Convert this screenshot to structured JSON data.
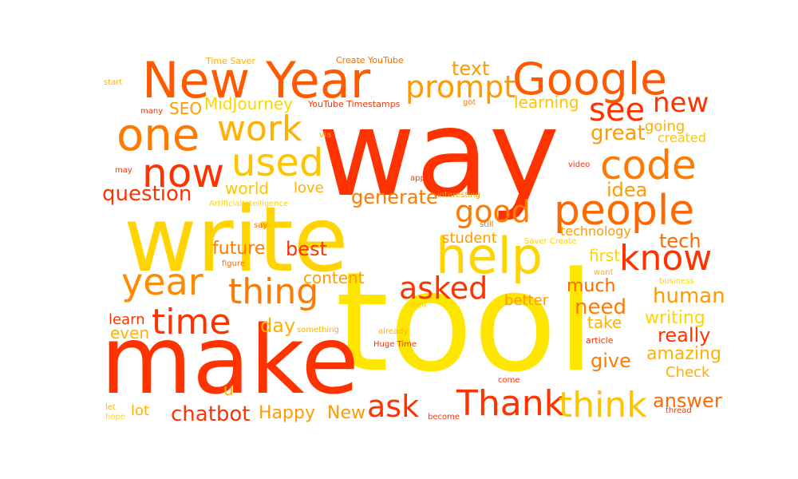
{
  "word_cloud": {
    "palette": {
      "red": "#ff2a00",
      "orange": "#ff7a00",
      "amber": "#ffb000",
      "yellow": "#ffe600"
    },
    "words": [
      {
        "text": "way",
        "color": "#ff3300"
      },
      {
        "text": "tool",
        "color": "#ffe600"
      },
      {
        "text": "make",
        "color": "#ff3300"
      },
      {
        "text": "write",
        "color": "#ffd400"
      },
      {
        "text": "New Year",
        "color": "#ff5a00"
      },
      {
        "text": "Google",
        "color": "#ff5a00"
      },
      {
        "text": "one",
        "color": "#ff7a00"
      },
      {
        "text": "work",
        "color": "#ffb000"
      },
      {
        "text": "now",
        "color": "#ff3300"
      },
      {
        "text": "used",
        "color": "#ffc400"
      },
      {
        "text": "prompt",
        "color": "#ff9a00"
      },
      {
        "text": "see",
        "color": "#ff3300"
      },
      {
        "text": "new",
        "color": "#ff3300"
      },
      {
        "text": "code",
        "color": "#ff7a00"
      },
      {
        "text": "people",
        "color": "#ff6a00"
      },
      {
        "text": "help",
        "color": "#ffd400"
      },
      {
        "text": "know",
        "color": "#ff3300"
      },
      {
        "text": "year",
        "color": "#ff8a00"
      },
      {
        "text": "thing",
        "color": "#ff7a00"
      },
      {
        "text": "time",
        "color": "#ff3300"
      },
      {
        "text": "asked",
        "color": "#ff3300"
      },
      {
        "text": "ask",
        "color": "#ff3300"
      },
      {
        "text": "Thank",
        "color": "#ff3300"
      },
      {
        "text": "think",
        "color": "#ffc400"
      },
      {
        "text": "good",
        "color": "#ff7a00"
      },
      {
        "text": "great",
        "color": "#ff9a00"
      },
      {
        "text": "question",
        "color": "#ff3300"
      },
      {
        "text": "generate",
        "color": "#ff7a00"
      },
      {
        "text": "idea",
        "color": "#ff9a00"
      },
      {
        "text": "world",
        "color": "#ffc400"
      },
      {
        "text": "love",
        "color": "#ffb000"
      },
      {
        "text": "text",
        "color": "#ff9a00"
      },
      {
        "text": "learning",
        "color": "#ffc400"
      },
      {
        "text": "going",
        "color": "#ffb000"
      },
      {
        "text": "created",
        "color": "#ffc400"
      },
      {
        "text": "future",
        "color": "#ff7a00"
      },
      {
        "text": "best",
        "color": "#ff3300"
      },
      {
        "text": "student",
        "color": "#ff9a00"
      },
      {
        "text": "technology",
        "color": "#ff9a00"
      },
      {
        "text": "tech",
        "color": "#ff6a00"
      },
      {
        "text": "first",
        "color": "#ffd400"
      },
      {
        "text": "content",
        "color": "#ff9a00"
      },
      {
        "text": "day",
        "color": "#ffb000"
      },
      {
        "text": "much",
        "color": "#ff6a00"
      },
      {
        "text": "human",
        "color": "#ff9a00"
      },
      {
        "text": "need",
        "color": "#ff7a00"
      },
      {
        "text": "better",
        "color": "#ff9a00"
      },
      {
        "text": "writing",
        "color": "#ffd400"
      },
      {
        "text": "take",
        "color": "#ffb000"
      },
      {
        "text": "really",
        "color": "#ff3300"
      },
      {
        "text": "amazing",
        "color": "#ffb000"
      },
      {
        "text": "give",
        "color": "#ff7a00"
      },
      {
        "text": "Check",
        "color": "#ffb000"
      },
      {
        "text": "learn",
        "color": "#ff3300"
      },
      {
        "text": "even",
        "color": "#ffb000"
      },
      {
        "text": "u",
        "color": "#ffb000"
      },
      {
        "text": "lot",
        "color": "#ffb000"
      },
      {
        "text": "chatbot",
        "color": "#ff3300"
      },
      {
        "text": "Happy",
        "color": "#ff9a00"
      },
      {
        "text": "New",
        "color": "#ff9a00"
      },
      {
        "text": "answer",
        "color": "#ff6a00"
      },
      {
        "text": "SEO",
        "color": "#ff9a00"
      },
      {
        "text": "MidJourney",
        "color": "#ffd400"
      },
      {
        "text": "YouTube Timestamps",
        "color": "#ff3300"
      },
      {
        "text": "Time Saver",
        "color": "#ffb000"
      },
      {
        "text": "Create YouTube",
        "color": "#ff6a00"
      },
      {
        "text": "start",
        "color": "#ffb000"
      },
      {
        "text": "many",
        "color": "#ff3300"
      },
      {
        "text": "got",
        "color": "#ff7a00"
      },
      {
        "text": "via",
        "color": "#ffb000"
      },
      {
        "text": "may",
        "color": "#ff3300"
      },
      {
        "text": "app",
        "color": "#ff3300"
      },
      {
        "text": "video",
        "color": "#ff3300"
      },
      {
        "text": "interesting",
        "color": "#ff9a00"
      },
      {
        "text": "ArtificialIntelligence",
        "color": "#ffd400"
      },
      {
        "text": "say",
        "color": "#ff6a00"
      },
      {
        "text": "still",
        "color": "#ff6a00"
      },
      {
        "text": "Saver Create",
        "color": "#ffd400"
      },
      {
        "text": "figure",
        "color": "#ff6a00"
      },
      {
        "text": "want",
        "color": "#ffb000"
      },
      {
        "text": "business",
        "color": "#ffd400"
      },
      {
        "text": "well",
        "color": "#ffd400"
      },
      {
        "text": "something",
        "color": "#ffb000"
      },
      {
        "text": "already",
        "color": "#ffb000"
      },
      {
        "text": "Huge Time",
        "color": "#ff3300"
      },
      {
        "text": "article",
        "color": "#ff3300"
      },
      {
        "text": "come",
        "color": "#ff3300"
      },
      {
        "text": "let",
        "color": "#ffb000"
      },
      {
        "text": "hope",
        "color": "#ffd400"
      },
      {
        "text": "become",
        "color": "#ff3300"
      },
      {
        "text": "thread",
        "color": "#ff3300"
      }
    ]
  }
}
